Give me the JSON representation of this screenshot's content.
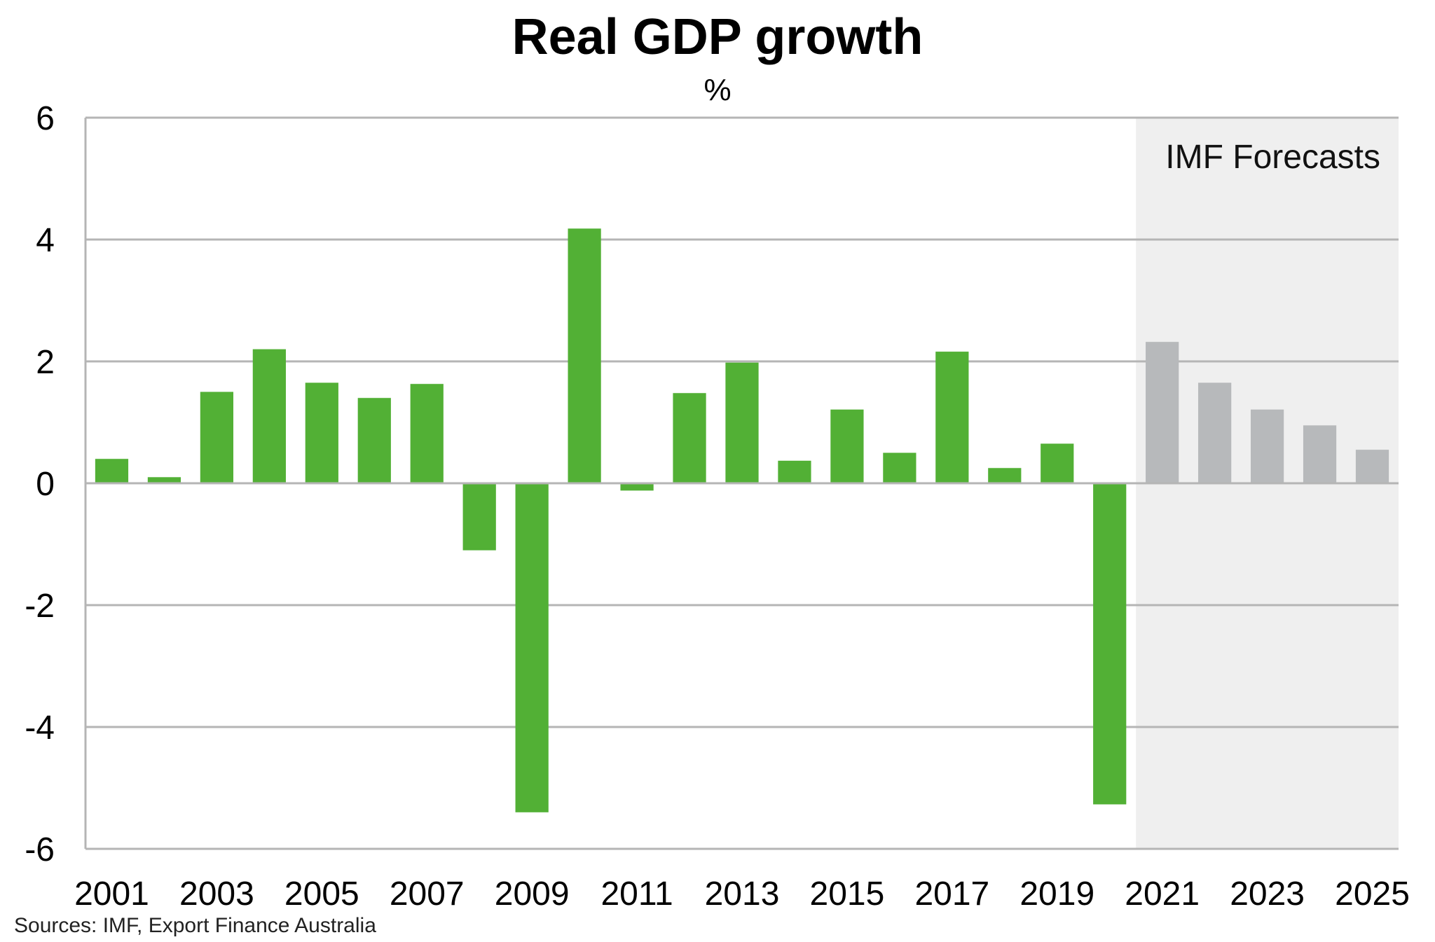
{
  "title": "Real GDP growth",
  "unit": "%",
  "source": "Sources: IMF, Export Finance Australia",
  "colors": {
    "actual": "#52b035",
    "forecast": "#b7b9bb",
    "forecast_background": "#efefef",
    "gridline": "#b5b5b5"
  },
  "chart_data": {
    "type": "bar",
    "title": "Real GDP growth",
    "ylabel": "%",
    "xlabel": "",
    "ylim": [
      -6,
      6
    ],
    "yticks": [
      6,
      4,
      2,
      0,
      -2,
      -4,
      -6
    ],
    "grid": true,
    "categories": [
      "2001",
      "2002",
      "2003",
      "2004",
      "2005",
      "2006",
      "2007",
      "2008",
      "2009",
      "2010",
      "2011",
      "2012",
      "2013",
      "2014",
      "2015",
      "2016",
      "2017",
      "2018",
      "2019",
      "2020",
      "2021",
      "2022",
      "2023",
      "2024",
      "2025"
    ],
    "xtick_labels": [
      "2001",
      "2003",
      "2005",
      "2007",
      "2009",
      "2011",
      "2013",
      "2015",
      "2017",
      "2019",
      "2021",
      "2023",
      "2025"
    ],
    "values": [
      0.4,
      0.1,
      1.5,
      2.2,
      1.65,
      1.4,
      1.63,
      -1.1,
      -5.4,
      4.18,
      -0.12,
      1.48,
      1.98,
      0.37,
      1.21,
      0.5,
      2.16,
      0.25,
      0.65,
      -5.27,
      2.32,
      1.65,
      1.21,
      0.95,
      0.55
    ],
    "forecast_from": "2021",
    "forecast_label": "IMF Forecasts"
  }
}
